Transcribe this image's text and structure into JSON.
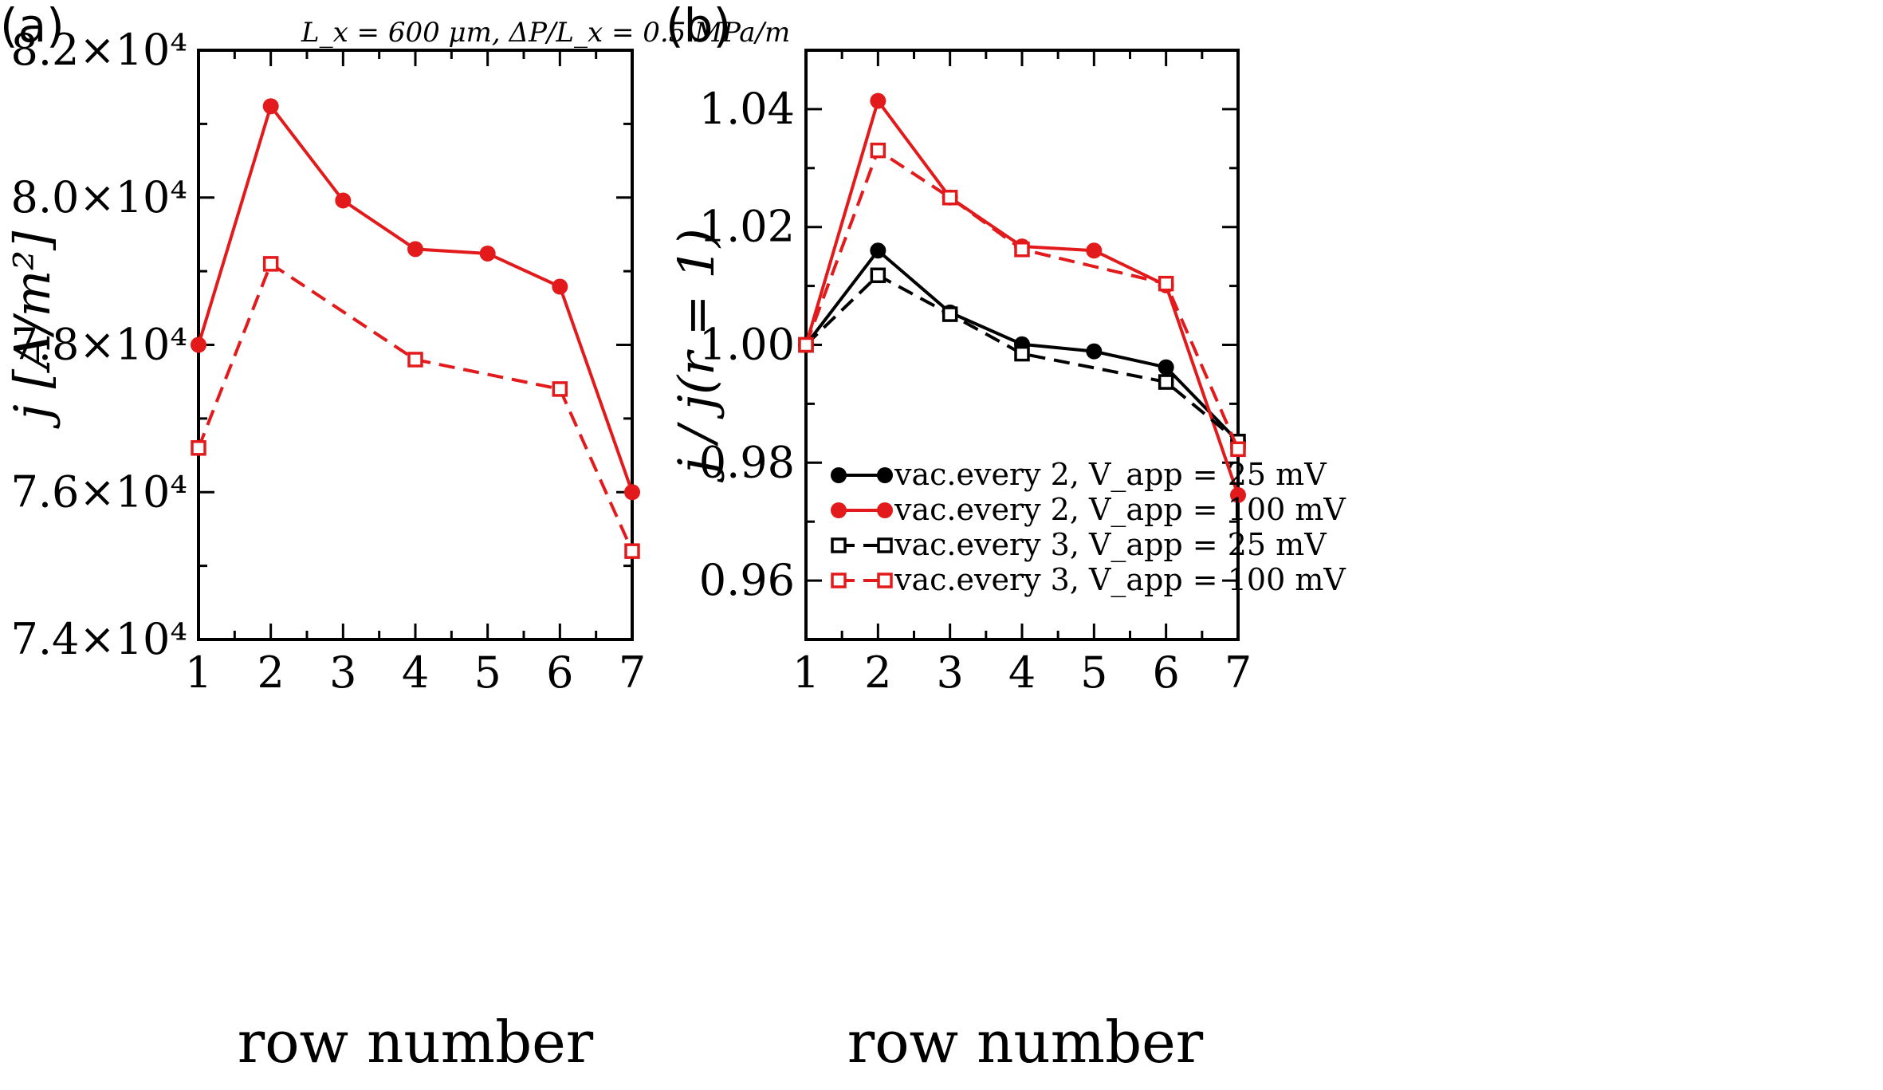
{
  "chart_data": [
    {
      "panel": "(a)",
      "type": "line",
      "title": "L_x = 600 μm, ΔP/L_x = 0.5 MPa/m",
      "xlabel": "row number",
      "ylabel": "j [A/m²]",
      "xlim": [
        1,
        7
      ],
      "ylim": [
        74000,
        82000
      ],
      "x_ticks": [
        "1",
        "2",
        "3",
        "4",
        "5",
        "6",
        "7"
      ],
      "y_ticks": [
        {
          "value": 74000,
          "label": "7.4×10⁴"
        },
        {
          "value": 76000,
          "label": "7.6×10⁴"
        },
        {
          "value": 78000,
          "label": "7.8×10⁴"
        },
        {
          "value": 80000,
          "label": "8.0×10⁴"
        },
        {
          "value": 82000,
          "label": "8.2×10⁴"
        }
      ],
      "series": [
        {
          "name": "vac. every 2, V_app = 100 mV",
          "color": "#e31a1c",
          "style": "solid",
          "marker": "circle",
          "x": [
            1,
            2,
            3,
            4,
            5,
            6,
            7
          ],
          "y": [
            78000,
            81240,
            79960,
            79300,
            79240,
            78790,
            76000
          ]
        },
        {
          "name": "vac. every 3, V_app = 100 mV",
          "color": "#e31a1c",
          "style": "dashed",
          "marker": "square-open",
          "x": [
            1,
            2,
            4,
            6,
            7
          ],
          "y": [
            76600,
            79100,
            77800,
            77400,
            75200
          ]
        }
      ]
    },
    {
      "panel": "(b)",
      "type": "line",
      "xlabel": "row number",
      "ylabel": "j / j(r = 1)",
      "xlim": [
        1,
        7
      ],
      "ylim": [
        0.95,
        1.05
      ],
      "x_ticks": [
        "1",
        "2",
        "3",
        "4",
        "5",
        "6",
        "7"
      ],
      "y_ticks": [
        {
          "value": 0.96,
          "label": "0.96"
        },
        {
          "value": 0.98,
          "label": "0.98"
        },
        {
          "value": 1.0,
          "label": "1.00"
        },
        {
          "value": 1.02,
          "label": "1.02"
        },
        {
          "value": 1.04,
          "label": "1.04"
        }
      ],
      "legend": {
        "position": "bottom-right"
      },
      "series": [
        {
          "name": "vac.every 2,",
          "vapp": "V_app = 25 mV",
          "color": "#000000",
          "style": "solid",
          "marker": "circle",
          "x": [
            1,
            2,
            3,
            4,
            5,
            6,
            7
          ],
          "y": [
            1.0,
            1.016,
            1.0055,
            1.0001,
            0.9989,
            0.9962,
            0.9836
          ]
        },
        {
          "name": "vac.every 2,",
          "vapp": "V_app = 100 mV",
          "color": "#e31a1c",
          "style": "solid",
          "marker": "circle",
          "x": [
            1,
            2,
            3,
            4,
            5,
            6,
            7
          ],
          "y": [
            1.0,
            1.0414,
            1.025,
            1.0167,
            1.016,
            1.0101,
            0.9745
          ]
        },
        {
          "name": "vac.every 3,",
          "vapp": "V_app = 25 mV",
          "color": "#000000",
          "style": "dashed",
          "marker": "square-open",
          "x": [
            1,
            2,
            3,
            4,
            6,
            7
          ],
          "y": [
            1.0,
            1.0118,
            1.0052,
            0.9985,
            0.9937,
            0.9836
          ]
        },
        {
          "name": "vac.every 3,",
          "vapp": "V_app = 100 mV",
          "color": "#e31a1c",
          "style": "dashed",
          "marker": "square-open",
          "x": [
            1,
            2,
            3,
            4,
            6,
            7
          ],
          "y": [
            1.0,
            1.033,
            1.025,
            1.0162,
            1.0104,
            0.9823
          ]
        }
      ]
    }
  ]
}
